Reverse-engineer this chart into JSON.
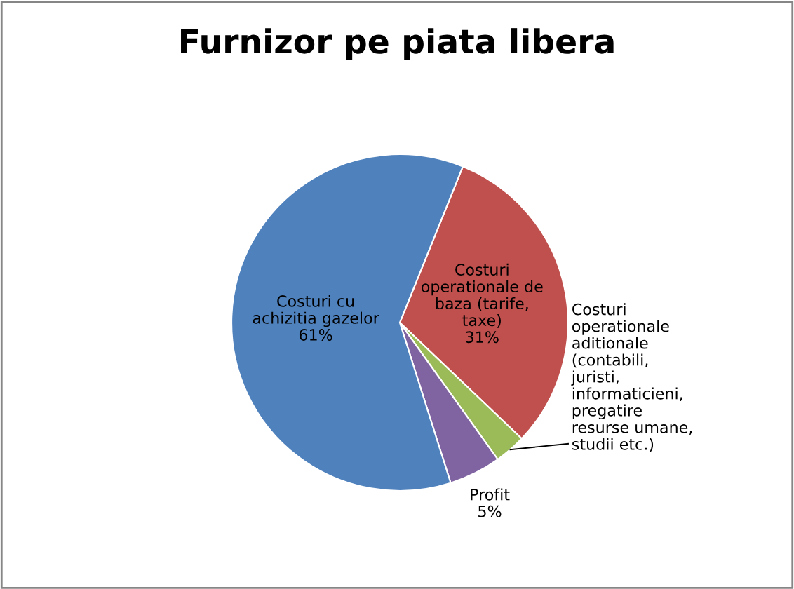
{
  "chart_data": {
    "type": "pie",
    "title": "Furnizor pe piata libera",
    "categories": [
      "Costuri\noperationale de\nbaza (tarife,\ntaxe)",
      "Costuri\noperationale\naditionale\n(contabili,\njuristi,\ninformaticieni,\npregatire\nresurse umane,\nstudii etc.)",
      "Profit",
      "Costuri cu\nachizitia gazelor"
    ],
    "values": [
      31,
      3,
      5,
      61
    ],
    "value_labels": [
      "31%",
      null,
      "5%",
      "61%"
    ],
    "colors": [
      "#c0504d",
      "#9bbb59",
      "#8064a2",
      "#4f81bd"
    ],
    "legend": false
  }
}
